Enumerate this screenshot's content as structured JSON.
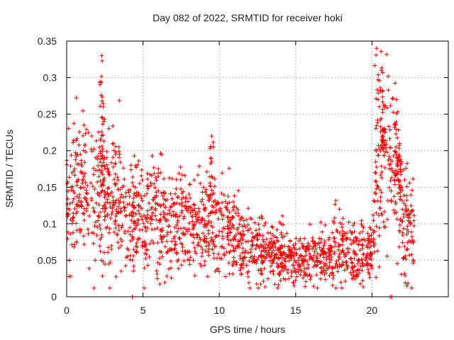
{
  "chart_data": {
    "type": "scatter",
    "title": "Day 082 of 2022, SRMTID for receiver hoki",
    "xlabel": "GPS time / hours",
    "ylabel": "SRMTID / TECUs",
    "xlim": [
      0,
      25
    ],
    "ylim": [
      0,
      0.35
    ],
    "xticks": [
      0,
      5,
      10,
      15,
      20
    ],
    "yticks": [
      0,
      0.05,
      0.1,
      0.15,
      0.2,
      0.25,
      0.3,
      0.35
    ],
    "xtick_labels": [
      "0",
      "5",
      "10",
      "15",
      "20"
    ],
    "ytick_labels": [
      "0",
      "0.05",
      "0.1",
      "0.15",
      "0.2",
      "0.25",
      "0.3",
      "0.35"
    ],
    "grid": true,
    "marker": "+",
    "color": "#ee0000",
    "series": [
      {
        "name": "SRMTID",
        "profile": [
          [
            0.0,
            0.11
          ],
          [
            0.5,
            0.14
          ],
          [
            1.0,
            0.15
          ],
          [
            1.5,
            0.14
          ],
          [
            2.0,
            0.13
          ],
          [
            2.5,
            0.13
          ],
          [
            3.0,
            0.13
          ],
          [
            3.5,
            0.12
          ],
          [
            4.0,
            0.11
          ],
          [
            5.0,
            0.11
          ],
          [
            6.0,
            0.1
          ],
          [
            7.0,
            0.1
          ],
          [
            8.0,
            0.1
          ],
          [
            9.0,
            0.1
          ],
          [
            10.0,
            0.09
          ],
          [
            11.0,
            0.08
          ],
          [
            12.0,
            0.07
          ],
          [
            13.0,
            0.06
          ],
          [
            14.0,
            0.055
          ],
          [
            15.0,
            0.05
          ],
          [
            16.0,
            0.055
          ],
          [
            17.0,
            0.06
          ],
          [
            18.0,
            0.065
          ],
          [
            19.0,
            0.06
          ],
          [
            20.0,
            0.06
          ],
          [
            20.5,
            0.17
          ],
          [
            21.0,
            0.2
          ],
          [
            21.5,
            0.16
          ],
          [
            22.0,
            0.12
          ],
          [
            22.5,
            0.1
          ],
          [
            22.8,
            0.09
          ]
        ],
        "spread": 0.35,
        "x_range": [
          0.0,
          22.8
        ],
        "count": 1900,
        "spikes": [
          {
            "x": 2.3,
            "y": 0.33
          },
          {
            "x": 2.4,
            "y": 0.26
          },
          {
            "x": 9.5,
            "y": 0.22
          },
          {
            "x": 20.3,
            "y": 0.34
          },
          {
            "x": 20.6,
            "y": 0.336
          },
          {
            "x": 20.8,
            "y": 0.23
          },
          {
            "x": 21.6,
            "y": 0.27
          },
          {
            "x": 21.8,
            "y": 0.21
          }
        ],
        "zero_points": [
          {
            "x": 4.3,
            "y": 0.0
          },
          {
            "x": 21.2,
            "y": 0.0
          },
          {
            "x": 21.3,
            "y": 0.0
          }
        ]
      }
    ]
  }
}
